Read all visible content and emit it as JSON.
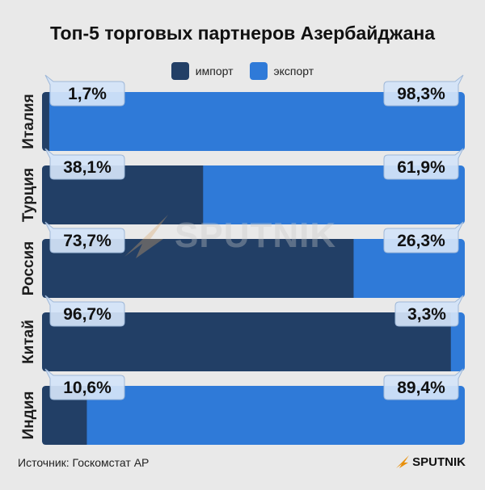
{
  "title": "Топ-5 торговых партнеров Азербайджана",
  "source": "Источник: Госкомстат АР",
  "brand": "SPUTNIK",
  "watermark": "SPUTNIK",
  "colors": {
    "import": "#223f66",
    "export": "#2f7ad8",
    "background": "#e9e9e9",
    "bubble": "#d3e3f7"
  },
  "chart_data": {
    "type": "bar",
    "orientation": "horizontal",
    "stacked": true,
    "percent": true,
    "categories": [
      "Италия",
      "Турция",
      "Россия",
      "Китай",
      "Индия"
    ],
    "series": [
      {
        "name": "импорт",
        "values": [
          1.7,
          38.1,
          73.7,
          96.7,
          10.6
        ],
        "labels": [
          "1,7%",
          "38,1%",
          "73,7%",
          "96,7%",
          "10,6%"
        ]
      },
      {
        "name": "экспорт",
        "values": [
          98.3,
          61.9,
          26.3,
          3.3,
          89.4
        ],
        "labels": [
          "98,3%",
          "61,9%",
          "26,3%",
          "3,3%",
          "89,4%"
        ]
      }
    ],
    "xlim": [
      0,
      100
    ],
    "legend": "top-center",
    "grid": false
  }
}
